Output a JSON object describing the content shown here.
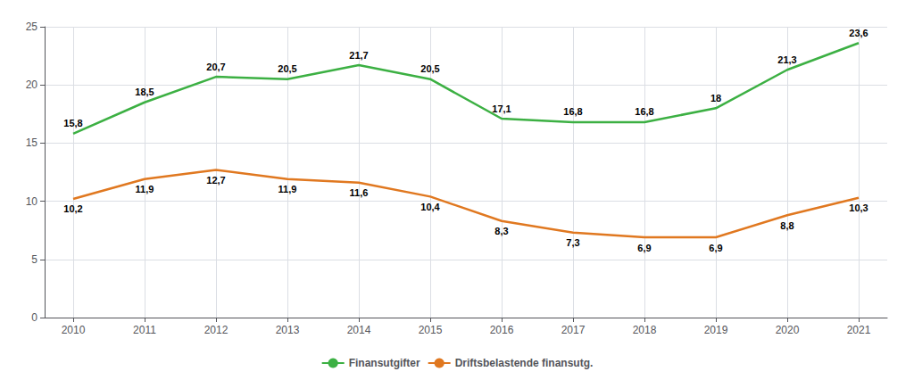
{
  "chart_data": {
    "type": "line",
    "x": [
      2010,
      2011,
      2012,
      2013,
      2014,
      2015,
      2016,
      2017,
      2018,
      2019,
      2020,
      2021
    ],
    "series": [
      {
        "name": "Finansutgifter",
        "color": "#3CB043",
        "values": [
          15.8,
          18.5,
          20.7,
          20.5,
          21.7,
          20.5,
          17.1,
          16.8,
          16.8,
          18.0,
          21.3,
          23.6
        ],
        "value_labels": [
          "15,8",
          "18,5",
          "20,7",
          "20,5",
          "21,7",
          "20,5",
          "17,1",
          "16,8",
          "16,8",
          "18",
          "21,3",
          "23,6"
        ]
      },
      {
        "name": "Driftsbelastende finansutg.",
        "color": "#E07820",
        "values": [
          10.2,
          11.9,
          12.7,
          11.9,
          11.6,
          10.4,
          8.3,
          7.3,
          6.9,
          6.9,
          8.8,
          10.3
        ],
        "value_labels": [
          "10,2",
          "11,9",
          "12,7",
          "11,9",
          "11,6",
          "10,4",
          "8,3",
          "7,3",
          "6,9",
          "6,9",
          "8,8",
          "10,3"
        ]
      }
    ],
    "xlim": [
      2009.6,
      2021.4
    ],
    "xticks": [
      2010,
      2011,
      2012,
      2013,
      2014,
      2015,
      2016,
      2017,
      2018,
      2019,
      2020,
      2021
    ],
    "ylim": [
      0,
      25
    ],
    "yticks": [
      0,
      5,
      10,
      15,
      20,
      25
    ],
    "grid": true,
    "legend": "bottom",
    "data_labels": true
  }
}
